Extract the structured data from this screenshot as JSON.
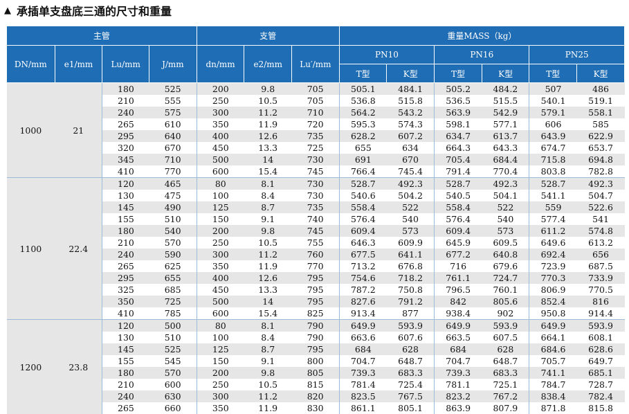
{
  "title": "承插单支盘底三通的尺寸和重量",
  "headers": {
    "main_pipe": "主管",
    "branch_pipe": "支管",
    "mass": "重量MASS（kg）",
    "DN": "DN/mm",
    "e1": "e1/mm",
    "Lu": "Lu/mm",
    "J": "J/mm",
    "dn": "dn/mm",
    "e2": "e2/mm",
    "Lu2": "Lu′/mm",
    "pn10": "PN10",
    "pn16": "PN16",
    "pn25": "PN25",
    "t_type": "T型",
    "k_type": "K型"
  },
  "groups": [
    {
      "dn": "1000",
      "e1": "21",
      "rows": [
        [
          "180",
          "525",
          "200",
          "9.8",
          "705",
          "505.1",
          "484.1",
          "505.2",
          "484.2",
          "507",
          "486"
        ],
        [
          "210",
          "555",
          "250",
          "10.5",
          "705",
          "536.8",
          "515.8",
          "536.5",
          "515.5",
          "540.1",
          "519.1"
        ],
        [
          "240",
          "575",
          "300",
          "11.2",
          "710",
          "564.2",
          "543.2",
          "563.9",
          "542.9",
          "579.1",
          "558.1"
        ],
        [
          "265",
          "610",
          "350",
          "11.9",
          "720",
          "595.3",
          "574.3",
          "598.1",
          "577.1",
          "606",
          "585"
        ],
        [
          "295",
          "640",
          "400",
          "12.6",
          "735",
          "628.2",
          "607.2",
          "634.7",
          "613.7",
          "643.9",
          "622.9"
        ],
        [
          "320",
          "670",
          "450",
          "13.3",
          "725",
          "655",
          "634",
          "664.3",
          "643.3",
          "674.7",
          "653.7"
        ],
        [
          "345",
          "710",
          "500",
          "14",
          "730",
          "691",
          "670",
          "705.4",
          "684.4",
          "715.8",
          "694.8"
        ],
        [
          "410",
          "770",
          "600",
          "15.4",
          "745",
          "766.4",
          "745.4",
          "791.4",
          "770.4",
          "803.8",
          "782.8"
        ]
      ]
    },
    {
      "dn": "1100",
      "e1": "22.4",
      "rows": [
        [
          "120",
          "465",
          "80",
          "8.1",
          "730",
          "528.7",
          "492.3",
          "528.7",
          "492.3",
          "528.7",
          "492.3"
        ],
        [
          "130",
          "475",
          "100",
          "8.4",
          "730",
          "540.6",
          "504.2",
          "540.5",
          "504.1",
          "541.1",
          "504.7"
        ],
        [
          "145",
          "490",
          "125",
          "8.7",
          "735",
          "558.4",
          "522",
          "558.4",
          "522",
          "559",
          "522.6"
        ],
        [
          "155",
          "510",
          "150",
          "9.1",
          "740",
          "576.4",
          "540",
          "576.4",
          "540",
          "577.4",
          "541"
        ],
        [
          "180",
          "540",
          "200",
          "9.8",
          "745",
          "609.4",
          "573",
          "609.4",
          "573",
          "611.2",
          "574.8"
        ],
        [
          "210",
          "570",
          "250",
          "10.5",
          "755",
          "646.3",
          "609.9",
          "645.9",
          "609.5",
          "649.6",
          "613.2"
        ],
        [
          "240",
          "590",
          "300",
          "11.2",
          "760",
          "677.5",
          "641.1",
          "677.2",
          "640.8",
          "692.4",
          "656"
        ],
        [
          "265",
          "625",
          "350",
          "11.9",
          "770",
          "713.2",
          "676.8",
          "716",
          "679.6",
          "723.9",
          "687.5"
        ],
        [
          "295",
          "655",
          "400",
          "12.6",
          "795",
          "754.6",
          "718.2",
          "761.1",
          "724.7",
          "770.3",
          "733.9"
        ],
        [
          "325",
          "685",
          "450",
          "13.3",
          "795",
          "787.2",
          "750.8",
          "796.5",
          "760.1",
          "806.9",
          "770.5"
        ],
        [
          "350",
          "725",
          "500",
          "14",
          "795",
          "827.6",
          "791.2",
          "842",
          "805.6",
          "852.4",
          "816"
        ],
        [
          "410",
          "785",
          "600",
          "15.4",
          "825",
          "913.4",
          "877",
          "938.4",
          "902",
          "950.8",
          "914.4"
        ]
      ]
    },
    {
      "dn": "1200",
      "e1": "23.8",
      "rows": [
        [
          "120",
          "500",
          "80",
          "8.1",
          "790",
          "649.9",
          "593.9",
          "649.9",
          "593.9",
          "649.9",
          "593.9"
        ],
        [
          "130",
          "510",
          "100",
          "8.4",
          "790",
          "663.6",
          "607.6",
          "663.5",
          "607.5",
          "664.1",
          "608.1"
        ],
        [
          "145",
          "525",
          "125",
          "8.7",
          "795",
          "684",
          "628",
          "684",
          "628",
          "684.6",
          "628.6"
        ],
        [
          "155",
          "545",
          "150",
          "9.1",
          "800",
          "704.7",
          "648.7",
          "704.7",
          "648.7",
          "705.7",
          "649.7"
        ],
        [
          "180",
          "570",
          "200",
          "9.8",
          "805",
          "739.3",
          "683.3",
          "739.3",
          "683.3",
          "741.1",
          "685.1"
        ],
        [
          "210",
          "600",
          "250",
          "10.5",
          "815",
          "781.4",
          "725.4",
          "781.1",
          "725.1",
          "784.7",
          "728.7"
        ],
        [
          "240",
          "630",
          "300",
          "11.2",
          "820",
          "823.5",
          "767.5",
          "823.2",
          "767.2",
          "838.4",
          "782.4"
        ],
        [
          "265",
          "660",
          "350",
          "11.9",
          "830",
          "861.1",
          "805.1",
          "863.9",
          "807.9",
          "871.8",
          "815.8"
        ]
      ]
    }
  ]
}
